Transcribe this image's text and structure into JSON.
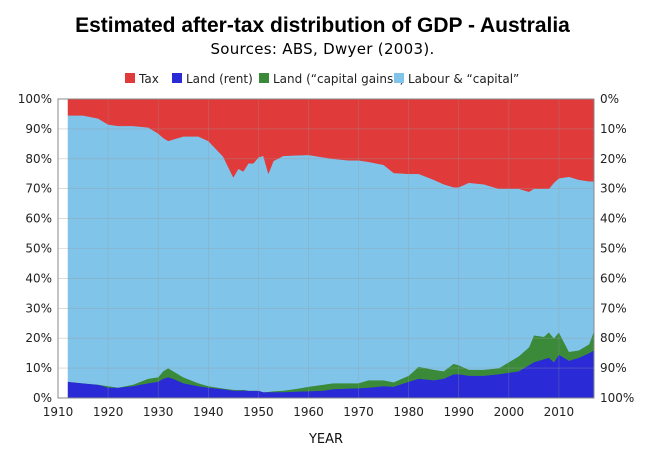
{
  "chart_data": {
    "type": "area",
    "stacked": true,
    "title": "Estimated after-tax distribution of GDP - Australia",
    "subtitle": "Sources: ABS, Dwyer (2003).",
    "xlabel": "YEAR",
    "ylabel_left": "",
    "ylabel_right": "",
    "xlim": [
      1910,
      2017
    ],
    "ylim": [
      0,
      100
    ],
    "x_ticks": [
      1910,
      1920,
      1930,
      1940,
      1950,
      1960,
      1970,
      1980,
      1990,
      2000,
      2010
    ],
    "y_ticks_left": [
      "0%",
      "10%",
      "20%",
      "30%",
      "40%",
      "50%",
      "60%",
      "70%",
      "80%",
      "90%",
      "100%"
    ],
    "y_ticks_right": [
      "100%",
      "90%",
      "80%",
      "70%",
      "60%",
      "50%",
      "40%",
      "30%",
      "20%",
      "10%",
      "0%"
    ],
    "legend_position": "top",
    "grid": true,
    "years": [
      1912,
      1915,
      1918,
      1920,
      1922,
      1925,
      1928,
      1930,
      1931,
      1932,
      1933,
      1935,
      1938,
      1940,
      1943,
      1945,
      1946,
      1947,
      1948,
      1949,
      1950,
      1951,
      1952,
      1953,
      1955,
      1958,
      1960,
      1963,
      1965,
      1968,
      1970,
      1972,
      1975,
      1977,
      1980,
      1982,
      1985,
      1987,
      1989,
      1990,
      1992,
      1995,
      1998,
      2000,
      2002,
      2004,
      2005,
      2007,
      2008,
      2009,
      2010,
      2012,
      2014,
      2016,
      2017
    ],
    "series": [
      {
        "name": "Land (rent)",
        "color": "#2a2ad6",
        "values": [
          5.5,
          5,
          4.5,
          3.5,
          3.5,
          4,
          5,
          5.5,
          6.5,
          7,
          6.5,
          5,
          4,
          3.5,
          3,
          2.5,
          2.5,
          2.5,
          2.5,
          2.5,
          2.5,
          2,
          2,
          2,
          2,
          2.2,
          2.3,
          2.5,
          3,
          3.2,
          3.3,
          3.5,
          4,
          3.8,
          5.5,
          6.5,
          6,
          6.5,
          8,
          8,
          7.5,
          7.5,
          8,
          8.5,
          9,
          11,
          12,
          13,
          13.5,
          12,
          14.5,
          12.5,
          13.5,
          15,
          16
        ]
      },
      {
        "name": "Land (“capital gains”)",
        "color": "#3a8a3a",
        "values": [
          0,
          0,
          0,
          0.5,
          0,
          0.5,
          1.5,
          1.5,
          2.5,
          3,
          2.5,
          2,
          1,
          0.5,
          0.2,
          0.3,
          0.2,
          0.3,
          0,
          0,
          0,
          0,
          0.1,
          0.3,
          0.5,
          1,
          1.5,
          2,
          2,
          1.8,
          1.7,
          2.5,
          2,
          1.5,
          2,
          4,
          3.5,
          2.5,
          3.5,
          3,
          2,
          2,
          2,
          3.5,
          5,
          6,
          9,
          7.5,
          8.5,
          8,
          7.5,
          3,
          2.5,
          3,
          6.5
        ]
      },
      {
        "name": "Labour & “capital”",
        "color": "#80c4ea",
        "values": [
          89,
          89.5,
          89,
          87.5,
          87.5,
          86.5,
          84,
          81.5,
          78,
          76,
          77.5,
          80.5,
          82.5,
          82,
          77.5,
          71,
          74,
          73,
          76,
          76,
          78,
          79,
          73,
          77,
          78.5,
          78,
          77.5,
          76,
          75,
          74.5,
          74.5,
          73,
          72,
          70,
          67.5,
          64.5,
          63.5,
          62.5,
          59,
          59.5,
          62.5,
          62,
          60,
          58,
          56,
          52,
          49,
          49.5,
          48,
          52,
          51.5,
          58.5,
          57,
          54.5,
          50
        ]
      },
      {
        "name": "Tax",
        "color": "#e03a3a",
        "values": [
          5.5,
          5.5,
          6.5,
          8.5,
          9,
          9,
          9.5,
          11.5,
          13,
          14,
          13.5,
          12.5,
          12.5,
          14,
          19.3,
          26.2,
          23.3,
          24.2,
          21.5,
          21.5,
          19.5,
          19,
          24.9,
          20.7,
          19,
          18.8,
          18.7,
          19.5,
          20,
          20.5,
          20.5,
          21,
          22,
          24.7,
          25,
          25,
          27,
          28.5,
          29.5,
          29.5,
          28,
          28.5,
          30,
          30,
          30,
          31,
          30,
          30,
          30,
          28,
          26.5,
          26,
          27,
          27.5,
          27.5
        ]
      }
    ]
  },
  "legend_items": [
    {
      "label": "Tax",
      "color": "#e03a3a"
    },
    {
      "label": "Land (rent)",
      "color": "#2a2ad6"
    },
    {
      "label": "Land (“capital gains”)",
      "color": "#3a8a3a"
    },
    {
      "label": "Labour & “capital”",
      "color": "#80c4ea"
    }
  ]
}
